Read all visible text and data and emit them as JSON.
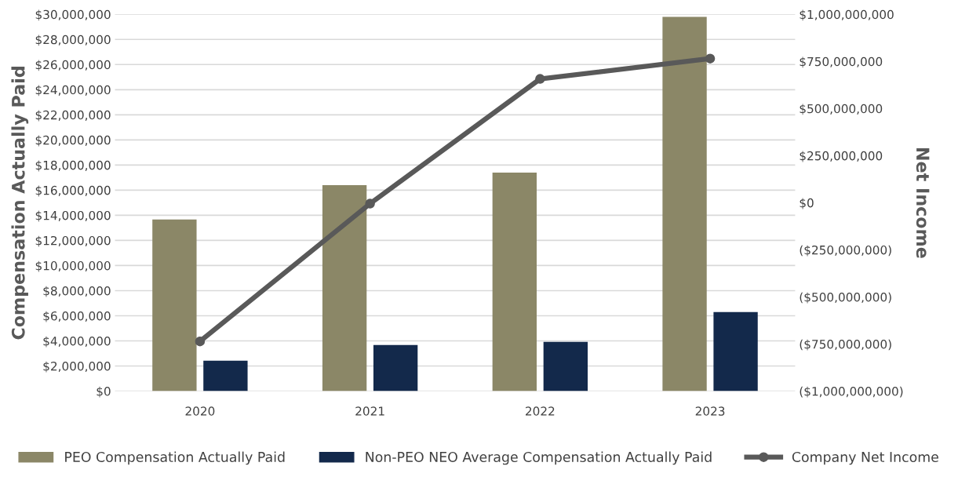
{
  "chart_data": {
    "type": "bar",
    "ylabel": "Compensation Actually Paid",
    "y2label": "Net Income",
    "categories": [
      "2020",
      "2021",
      "2022",
      "2023"
    ],
    "series": [
      {
        "name": "PEO Compensation Actually Paid",
        "color": "#8b8767",
        "values": [
          13660000,
          16400000,
          17400000,
          29800000
        ]
      },
      {
        "name": "Non-PEO NEO Average Compensation Actually Paid",
        "color": "#13294b",
        "values": [
          2430000,
          3680000,
          3930000,
          6300000
        ]
      },
      {
        "name": "Company Net Income",
        "type": "line",
        "axis": "y2",
        "color": "#595959",
        "marker": "circle",
        "values": [
          -736000000,
          -5000000,
          657000000,
          765000000
        ]
      }
    ],
    "ylim": [
      0,
      30000000
    ],
    "yticks": [
      {
        "value": 0,
        "label": "$0"
      },
      {
        "value": 2000000,
        "label": "$2,000,000"
      },
      {
        "value": 4000000,
        "label": "$4,000,000"
      },
      {
        "value": 6000000,
        "label": "$6,000,000"
      },
      {
        "value": 8000000,
        "label": "$8,000,000"
      },
      {
        "value": 10000000,
        "label": "$10,000,000"
      },
      {
        "value": 12000000,
        "label": "$12,000,000"
      },
      {
        "value": 14000000,
        "label": "$14,000,000"
      },
      {
        "value": 16000000,
        "label": "$16,000,000"
      },
      {
        "value": 18000000,
        "label": "$18,000,000"
      },
      {
        "value": 20000000,
        "label": "$20,000,000"
      },
      {
        "value": 22000000,
        "label": "$22,000,000"
      },
      {
        "value": 24000000,
        "label": "$24,000,000"
      },
      {
        "value": 26000000,
        "label": "$26,000,000"
      },
      {
        "value": 28000000,
        "label": "$28,000,000"
      },
      {
        "value": 30000000,
        "label": "$30,000,000"
      }
    ],
    "y2lim": [
      -1000000000,
      1000000000
    ],
    "y2ticks": [
      {
        "value": -1000000000,
        "label": "($1,000,000,000)"
      },
      {
        "value": -750000000,
        "label": "($750,000,000)"
      },
      {
        "value": -500000000,
        "label": "($500,000,000)"
      },
      {
        "value": -250000000,
        "label": "($250,000,000)"
      },
      {
        "value": 0,
        "label": "$0"
      },
      {
        "value": 250000000,
        "label": "$250,000,000"
      },
      {
        "value": 500000000,
        "label": "$500,000,000"
      },
      {
        "value": 750000000,
        "label": "$750,000,000"
      },
      {
        "value": 1000000000,
        "label": "$1,000,000,000"
      }
    ],
    "grid": "y",
    "legend": "bottom"
  }
}
